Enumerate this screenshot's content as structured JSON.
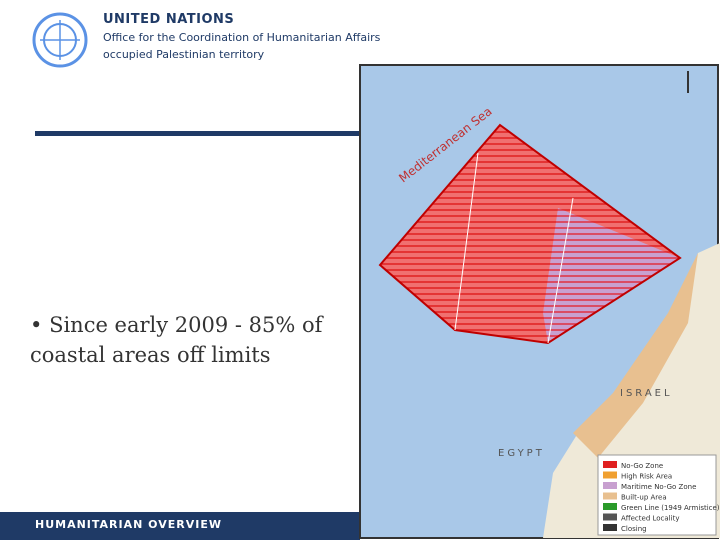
{
  "header": {
    "org": "UNITED NATIONS",
    "office": "Office for the Coordination of Humanitarian Affairs",
    "territory": "occupied Palestinian territory"
  },
  "bullet": "Since early 2009 - 85% of coastal areas off limits",
  "footer": "HUMANITARIAN OVERVIEW",
  "map": {
    "sea_label": "Mediterranean Sea",
    "labels": [
      "ISRAEL",
      "EGYPT"
    ],
    "legend": [
      "No-Go Zone",
      "High Risk Area",
      "Maritime No-Go Zone",
      "Built-up Area",
      "Green Line (1949 Armistice)",
      "Affected Locality",
      "Closing"
    ]
  }
}
